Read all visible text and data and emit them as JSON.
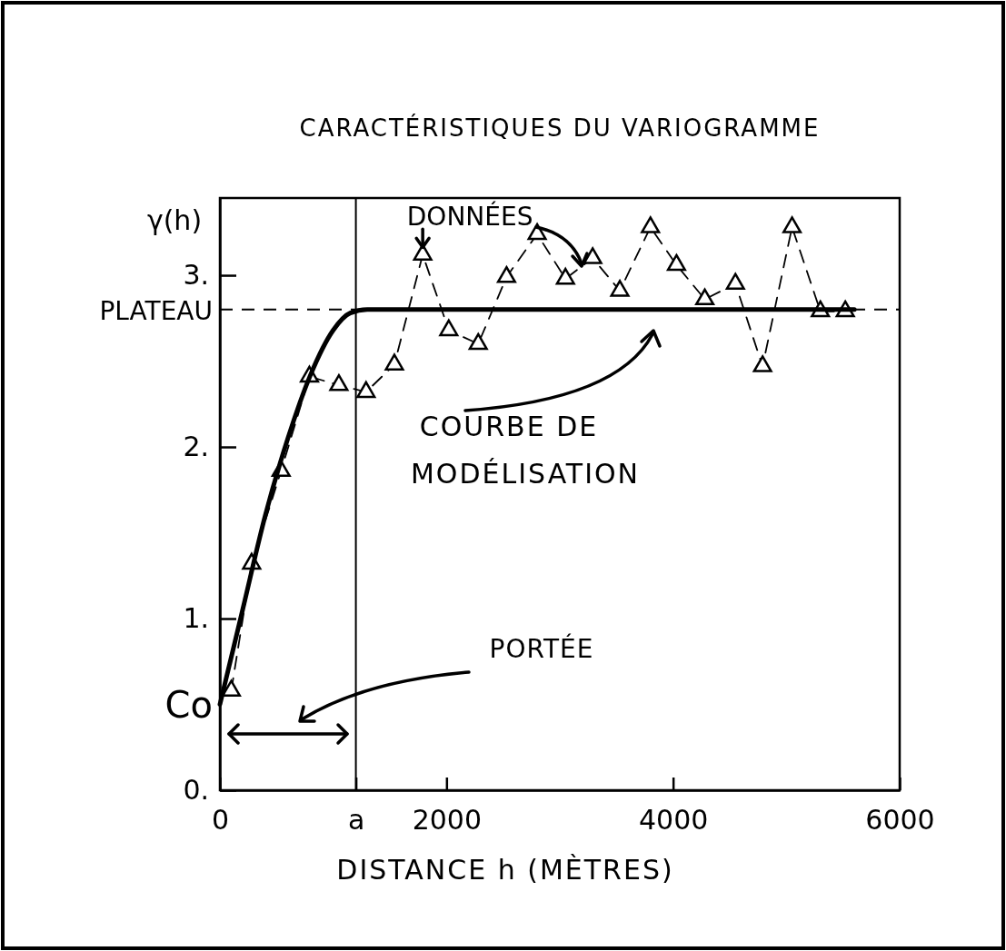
{
  "chart_data": {
    "type": "line",
    "title": "CARACTÉRISTIQUES DU VARIOGRAMME",
    "xlabel": "DISTANCE h (MÈTRES)",
    "ylabel": "γ(h)",
    "xlim": [
      0,
      6000
    ],
    "ylim": [
      0,
      3.45
    ],
    "xticks": [
      0,
      {
        "value": 1200,
        "label": "a"
      },
      2000,
      4000,
      6000
    ],
    "yticks": [
      {
        "value": 0,
        "label": "0."
      },
      {
        "value": 1,
        "label": "1."
      },
      {
        "value": 2,
        "label": "2."
      },
      {
        "value": 3,
        "label": "3."
      }
    ],
    "grid": false,
    "ref_lines": [
      {
        "axis": "y",
        "value": 2.8,
        "label": "PLATEAU",
        "line_style": "dashed"
      },
      {
        "axis": "x",
        "value": 1200,
        "line_style": "solid"
      }
    ],
    "annotations": [
      {
        "text": "DONNÉES",
        "x": 1790,
        "y": 3.12
      },
      "COURBE DE MODÉLISATION",
      "PORTÉE",
      {
        "text": "Co",
        "x": 0,
        "y": 0.5
      }
    ],
    "series": [
      {
        "color": "#000000",
        "marker": "triangle",
        "line_style": "dashed",
        "x": [
          100,
          280,
          540,
          790,
          1050,
          1290,
          1540,
          1790,
          2020,
          2280,
          2530,
          2800,
          3050,
          3290,
          3530,
          3800,
          4030,
          4280,
          4550,
          4790,
          5050,
          5300,
          5520
        ],
        "values": [
          0.58,
          1.32,
          1.86,
          2.41,
          2.36,
          2.32,
          2.48,
          3.12,
          2.68,
          2.6,
          2.99,
          3.24,
          2.98,
          3.1,
          2.91,
          3.28,
          3.06,
          2.86,
          2.95,
          2.47,
          3.28,
          2.79,
          2.79
        ]
      },
      {
        "color": "#000000",
        "marker": "none",
        "line_style": "solid",
        "x": [
          0,
          200,
          400,
          600,
          800,
          1000,
          1150,
          1300,
          5600
        ],
        "values": [
          0.5,
          1.05,
          1.6,
          2.05,
          2.42,
          2.68,
          2.78,
          2.8,
          2.8
        ]
      }
    ]
  }
}
